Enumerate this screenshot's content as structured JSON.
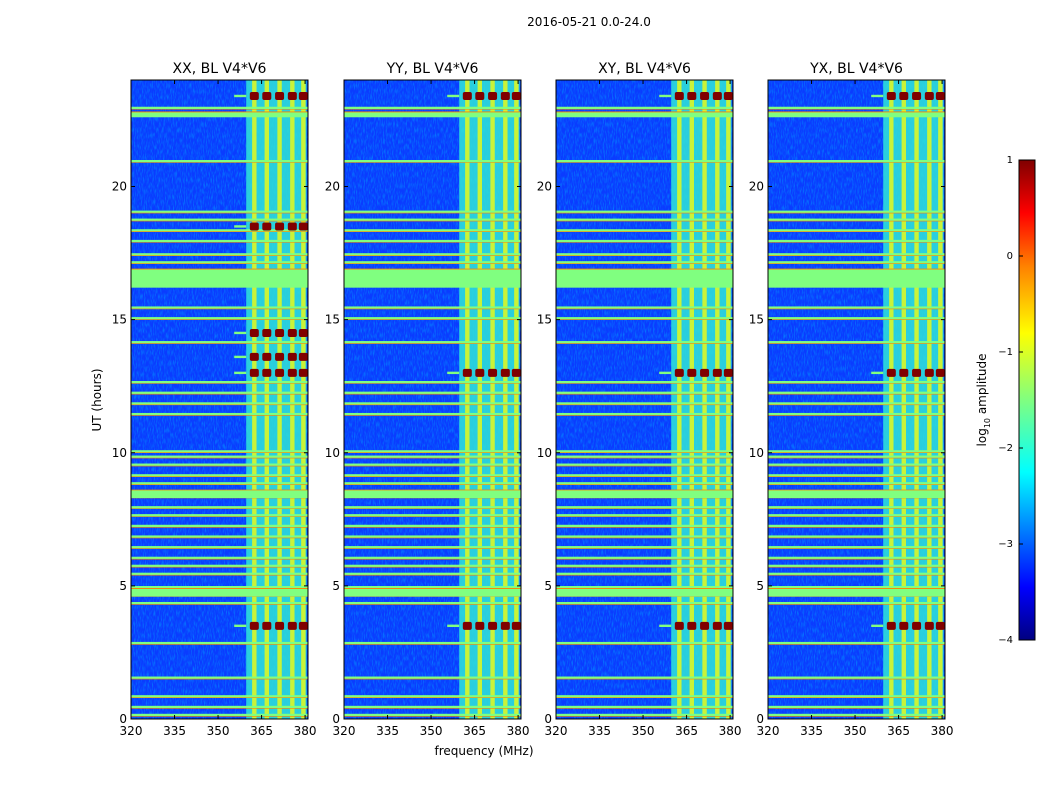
{
  "suptitle": "2016-05-21 0.0-24.0",
  "colors": {
    "background": "#ffffff",
    "axis": "#000000",
    "jet": [
      "#000080",
      "#0000ff",
      "#0080ff",
      "#00ffff",
      "#80ff80",
      "#ffff00",
      "#ff8000",
      "#ff0000",
      "#800000"
    ]
  },
  "chart_data": [
    {
      "type": "heatmap",
      "title": "XX, BL V4*V6",
      "xlabel": "",
      "ylabel": "UT (hours)",
      "xlim": [
        320,
        381
      ],
      "ylim": [
        0,
        24
      ],
      "xticks": [
        "320",
        "335",
        "350",
        "365",
        "380"
      ],
      "yticks": [
        "0",
        "5",
        "10",
        "15",
        "20"
      ],
      "rfi_band_mhz": [
        359.7,
        380.5
      ],
      "strong_hours": [
        3.5,
        13.0,
        13.6,
        14.5,
        18.5,
        23.4
      ]
    },
    {
      "type": "heatmap",
      "title": "YY, BL V4*V6",
      "xlabel": "frequency (MHz)",
      "ylabel": "",
      "xlim": [
        320,
        381
      ],
      "ylim": [
        0,
        24
      ],
      "xticks": [
        "320",
        "335",
        "350",
        "365",
        "380"
      ],
      "yticks": [
        "0",
        "5",
        "10",
        "15",
        "20"
      ],
      "rfi_band_mhz": [
        359.7,
        380.5
      ],
      "strong_hours": [
        3.5,
        13.0,
        23.4
      ]
    },
    {
      "type": "heatmap",
      "title": "XY, BL V4*V6",
      "xlabel": "",
      "ylabel": "",
      "xlim": [
        320,
        381
      ],
      "ylim": [
        0,
        24
      ],
      "xticks": [
        "320",
        "335",
        "350",
        "365",
        "380"
      ],
      "yticks": [
        "0",
        "5",
        "10",
        "15",
        "20"
      ],
      "rfi_band_mhz": [
        359.7,
        380.5
      ],
      "strong_hours": [
        3.5,
        13.0,
        23.4
      ]
    },
    {
      "type": "heatmap",
      "title": "YX, BL V4*V6",
      "xlabel": "",
      "ylabel": "",
      "xlim": [
        320,
        381
      ],
      "ylim": [
        0,
        24
      ],
      "xticks": [
        "320",
        "335",
        "350",
        "365",
        "380"
      ],
      "yticks": [
        "0",
        "5",
        "10",
        "15",
        "20"
      ],
      "rfi_band_mhz": [
        359.7,
        380.5
      ],
      "strong_hours": [
        3.5,
        13.0,
        23.4
      ]
    }
  ],
  "shared": {
    "flagged_hours": [
      0.15,
      0.45,
      0.85,
      1.55,
      2.85,
      4.35,
      4.65,
      4.95,
      5.45,
      5.75,
      6.05,
      6.45,
      6.85,
      7.25,
      7.65,
      7.95,
      8.35,
      8.55,
      8.85,
      9.15,
      9.55,
      9.85,
      10.05,
      11.45,
      11.85,
      12.25,
      12.65,
      14.15,
      15.05,
      15.45,
      17.15,
      17.45,
      17.95,
      18.35,
      18.75,
      19.05,
      20.95,
      22.95
    ],
    "wide_flag_hours": [
      [
        16.2,
        16.9
      ],
      [
        22.6,
        22.8
      ],
      [
        8.3,
        8.6
      ],
      [
        4.6,
        4.9
      ]
    ],
    "rfi_channels_mhz": [
      362.5,
      366.8,
      371.2,
      375.6,
      379.4
    ]
  },
  "colorbar": {
    "label": "log",
    "label_sub": "10",
    "label_rest": " amplitude",
    "range": [
      -4,
      1
    ],
    "ticks": [
      "1",
      "0",
      "−1",
      "−2",
      "−3",
      "−4"
    ]
  }
}
